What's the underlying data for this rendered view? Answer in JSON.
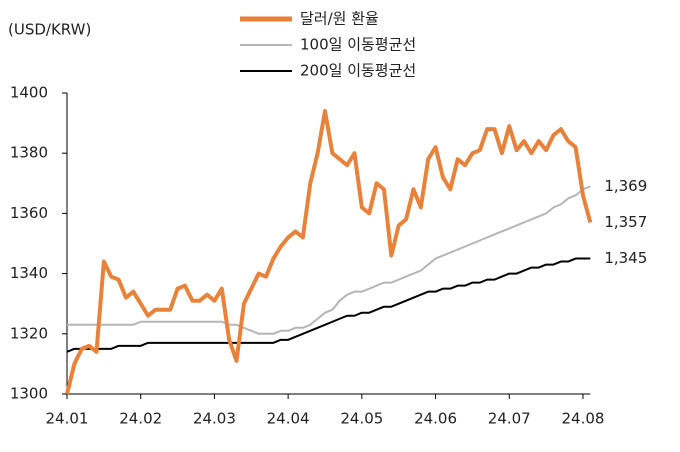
{
  "chart_data": {
    "type": "line",
    "unit_label": "(USD/KRW)",
    "categories": [
      "24.01",
      null,
      null,
      null,
      null,
      null,
      null,
      null,
      null,
      null,
      "24.02",
      null,
      null,
      null,
      null,
      null,
      null,
      null,
      null,
      null,
      "24.03",
      null,
      null,
      null,
      null,
      null,
      null,
      null,
      null,
      null,
      "24.04",
      null,
      null,
      null,
      null,
      null,
      null,
      null,
      null,
      null,
      "24.05",
      null,
      null,
      null,
      null,
      null,
      null,
      null,
      null,
      null,
      "24.06",
      null,
      null,
      null,
      null,
      null,
      null,
      null,
      null,
      null,
      "24.07",
      null,
      null,
      null,
      null,
      null,
      null,
      null,
      null,
      null,
      "24.08",
      null
    ],
    "series": [
      {
        "name": "달러/원 환율",
        "color": "#e8823a",
        "width": 4,
        "values": [
          1300,
          1310,
          1315,
          1316,
          1314,
          1344,
          1339,
          1338,
          1332,
          1334,
          1330,
          1326,
          1328,
          1328,
          1328,
          1335,
          1336,
          1331,
          1331,
          1333,
          1331,
          1335,
          1318,
          1311,
          1330,
          1335,
          1340,
          1339,
          1345,
          1349,
          1352,
          1354,
          1352,
          1370,
          1380,
          1394,
          1380,
          1378,
          1376,
          1380,
          1362,
          1360,
          1370,
          1368,
          1346,
          1356,
          1358,
          1368,
          1362,
          1378,
          1382,
          1372,
          1368,
          1378,
          1376,
          1380,
          1381,
          1388,
          1388,
          1380,
          1389,
          1381,
          1384,
          1380,
          1384,
          1381,
          1386,
          1388,
          1384,
          1382,
          1366,
          1357
        ],
        "end_label": "1,357"
      },
      {
        "name": "100일 이동평균선",
        "color": "#b5b5b5",
        "width": 2,
        "values": [
          1323,
          1323,
          1323,
          1323,
          1323,
          1323,
          1323,
          1323,
          1323,
          1323,
          1324,
          1324,
          1324,
          1324,
          1324,
          1324,
          1324,
          1324,
          1324,
          1324,
          1324,
          1324,
          1323,
          1323,
          1322,
          1321,
          1320,
          1320,
          1320,
          1321,
          1321,
          1322,
          1322,
          1323,
          1325,
          1327,
          1328,
          1331,
          1333,
          1334,
          1334,
          1335,
          1336,
          1337,
          1337,
          1338,
          1339,
          1340,
          1341,
          1343,
          1345,
          1346,
          1347,
          1348,
          1349,
          1350,
          1351,
          1352,
          1353,
          1354,
          1355,
          1356,
          1357,
          1358,
          1359,
          1360,
          1362,
          1363,
          1365,
          1366,
          1368,
          1369
        ],
        "end_label": "1,369"
      },
      {
        "name": "200일 이동평균선",
        "color": "#000000",
        "width": 2,
        "values": [
          1314,
          1315,
          1315,
          1315,
          1315,
          1315,
          1315,
          1316,
          1316,
          1316,
          1316,
          1317,
          1317,
          1317,
          1317,
          1317,
          1317,
          1317,
          1317,
          1317,
          1317,
          1317,
          1317,
          1317,
          1317,
          1317,
          1317,
          1317,
          1317,
          1318,
          1318,
          1319,
          1320,
          1321,
          1322,
          1323,
          1324,
          1325,
          1326,
          1326,
          1327,
          1327,
          1328,
          1329,
          1329,
          1330,
          1331,
          1332,
          1333,
          1334,
          1334,
          1335,
          1335,
          1336,
          1336,
          1337,
          1337,
          1338,
          1338,
          1339,
          1340,
          1340,
          1341,
          1342,
          1342,
          1343,
          1343,
          1344,
          1344,
          1345,
          1345,
          1345
        ],
        "end_label": "1,345"
      }
    ],
    "ylim": [
      1300,
      1400
    ],
    "yticks": [
      1300,
      1320,
      1340,
      1360,
      1380,
      1400
    ],
    "grid": false
  }
}
